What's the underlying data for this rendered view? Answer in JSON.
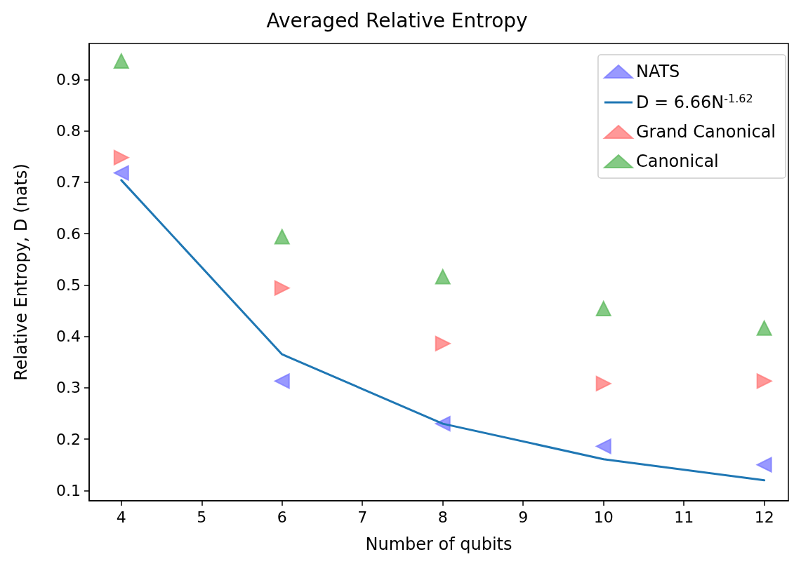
{
  "chart_data": {
    "type": "scatter",
    "title": "Averaged Relative Entropy",
    "xlabel": "Number of qubits",
    "ylabel": "Relative Entropy, D (nats)",
    "x": [
      4,
      6,
      8,
      10,
      12
    ],
    "series": [
      {
        "name": "NATS",
        "marker": "triangle-left",
        "color": "#7777ff",
        "values": [
          0.718,
          0.313,
          0.23,
          0.186,
          0.15
        ]
      },
      {
        "name": "D = 6.66N$^{-1.62}$",
        "type": "line",
        "marker": "none",
        "line_style": "solid",
        "color": "#1f77b4",
        "values": [
          0.704,
          0.365,
          0.23,
          0.161,
          0.12
        ]
      },
      {
        "name": "Grand Canonical",
        "marker": "triangle-right",
        "color": "#ff7777",
        "values": [
          0.748,
          0.494,
          0.386,
          0.308,
          0.313
        ]
      },
      {
        "name": "Canonical",
        "marker": "triangle",
        "color": "#5cb85c",
        "values": [
          0.936,
          0.594,
          0.516,
          0.454,
          0.416
        ]
      }
    ],
    "xlim": [
      3.6,
      12.3
    ],
    "xticks": [
      4,
      5,
      6,
      7,
      8,
      9,
      10,
      11,
      12
    ],
    "ylim": [
      0.08,
      0.97
    ],
    "yticks": [
      0.1,
      0.2,
      0.3,
      0.4,
      0.5,
      0.6,
      0.7,
      0.8,
      0.9
    ],
    "grid": false,
    "legend": "top right"
  }
}
